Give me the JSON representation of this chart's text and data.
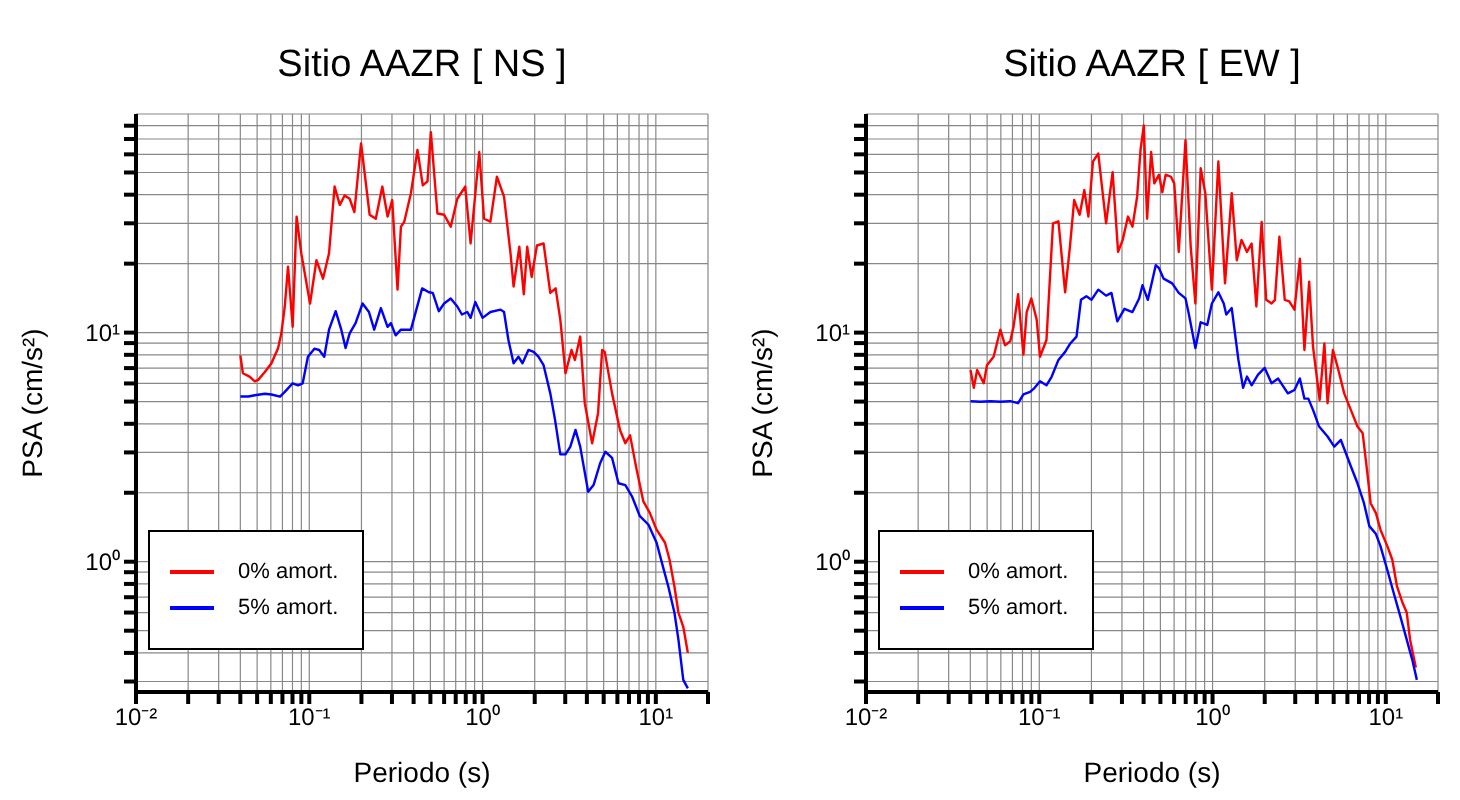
{
  "chart_data": [
    {
      "type": "line",
      "title": "Sitio AAZR [ NS ]",
      "xlabel": "Periodo (s)",
      "ylabel": "PSA (cm/s²)",
      "log": "xy",
      "grid": true,
      "legend": "bottom left",
      "marker": "none",
      "line_style": "solid",
      "xlim": [
        0.01,
        20
      ],
      "ylim": [
        0.27,
        90
      ],
      "xticks": [
        {
          "value": 0.01,
          "label": "10⁻²"
        },
        {
          "value": 0.02,
          "label": null
        },
        {
          "value": 0.03,
          "label": null
        },
        {
          "value": 0.04,
          "label": null
        },
        {
          "value": 0.05,
          "label": null
        },
        {
          "value": 0.06,
          "label": null
        },
        {
          "value": 0.07,
          "label": null
        },
        {
          "value": 0.08,
          "label": null
        },
        {
          "value": 0.09,
          "label": null
        },
        {
          "value": 0.1,
          "label": "10⁻¹"
        },
        {
          "value": 0.2,
          "label": null
        },
        {
          "value": 0.3,
          "label": null
        },
        {
          "value": 0.4,
          "label": null
        },
        {
          "value": 0.5,
          "label": null
        },
        {
          "value": 0.6,
          "label": null
        },
        {
          "value": 0.7,
          "label": null
        },
        {
          "value": 0.8,
          "label": null
        },
        {
          "value": 0.9,
          "label": null
        },
        {
          "value": 1,
          "label": "10⁰"
        },
        {
          "value": 2,
          "label": null
        },
        {
          "value": 3,
          "label": null
        },
        {
          "value": 4,
          "label": null
        },
        {
          "value": 5,
          "label": null
        },
        {
          "value": 6,
          "label": null
        },
        {
          "value": 7,
          "label": null
        },
        {
          "value": 8,
          "label": null
        },
        {
          "value": 9,
          "label": null
        },
        {
          "value": 10,
          "label": "10¹"
        },
        {
          "value": 20,
          "label": null
        }
      ],
      "yticks": [
        {
          "value": 0.3,
          "label": null
        },
        {
          "value": 0.4,
          "label": null
        },
        {
          "value": 0.5,
          "label": null
        },
        {
          "value": 0.6,
          "label": null
        },
        {
          "value": 0.7,
          "label": null
        },
        {
          "value": 0.8,
          "label": null
        },
        {
          "value": 0.9,
          "label": null
        },
        {
          "value": 1,
          "label": "10⁰"
        },
        {
          "value": 2,
          "label": null
        },
        {
          "value": 3,
          "label": null
        },
        {
          "value": 4,
          "label": null
        },
        {
          "value": 5,
          "label": null
        },
        {
          "value": 6,
          "label": null
        },
        {
          "value": 7,
          "label": null
        },
        {
          "value": 8,
          "label": null
        },
        {
          "value": 9,
          "label": null
        },
        {
          "value": 10,
          "label": "10¹"
        },
        {
          "value": 20,
          "label": null
        },
        {
          "value": 30,
          "label": null
        },
        {
          "value": 40,
          "label": null
        },
        {
          "value": 50,
          "label": null
        },
        {
          "value": 60,
          "label": null
        },
        {
          "value": 70,
          "label": null
        },
        {
          "value": 80,
          "label": null
        }
      ],
      "series": [
        {
          "name": "0% amort.",
          "color": "#ff0000",
          "x": [
            0.04,
            0.0414,
            0.0452,
            0.0485,
            0.0507,
            0.0554,
            0.0605,
            0.0661,
            0.069,
            0.0722,
            0.0754,
            0.0802,
            0.0845,
            0.0899,
            0.101,
            0.11,
            0.12,
            0.13,
            0.14,
            0.15,
            0.16,
            0.171,
            0.182,
            0.199,
            0.223,
            0.242,
            0.264,
            0.283,
            0.301,
            0.323,
            0.338,
            0.353,
            0.386,
            0.421,
            0.452,
            0.481,
            0.503,
            0.549,
            0.6,
            0.655,
            0.715,
            0.794,
            0.853,
            0.957,
            1.02,
            1.11,
            1.21,
            1.33,
            1.45,
            1.51,
            1.63,
            1.73,
            1.81,
            1.92,
            2.06,
            2.25,
            2.46,
            2.64,
            2.81,
            3.01,
            3.26,
            3.41,
            3.66,
            3.89,
            4.29,
            4.64,
            4.9,
            5.07,
            5.59,
            6.21,
            6.67,
            7.1,
            7.75,
            8.46,
            9.24,
            10.1,
            11.3,
            12,
            12.8,
            13.5,
            14.4,
            15.3
          ],
          "values": [
            7.96,
            6.65,
            6.43,
            6.13,
            6.22,
            6.73,
            7.35,
            8.57,
            9.93,
            13,
            19.4,
            10.6,
            32.1,
            22.2,
            13.4,
            20.7,
            17.2,
            22.2,
            43.4,
            36.1,
            39.7,
            38.4,
            33.6,
            67,
            32.7,
            31.4,
            43.4,
            32.1,
            37.9,
            15.4,
            29,
            30.4,
            40.6,
            62.7,
            43.9,
            45.7,
            75,
            33.1,
            32.7,
            29,
            38.4,
            43.4,
            24.5,
            61.4,
            31.4,
            30.5,
            47.9,
            39.2,
            22.2,
            15.9,
            23.7,
            14.7,
            23.7,
            17.5,
            24,
            24.5,
            14.9,
            15.6,
            11.4,
            6.65,
            8.4,
            7.6,
            9.61,
            4.92,
            3.29,
            4.45,
            8.4,
            8.24,
            5.43,
            3.76,
            3.29,
            3.56,
            2.52,
            1.84,
            1.63,
            1.38,
            1.21,
            1.02,
            0.78,
            0.6,
            0.52,
            0.4
          ]
        },
        {
          "name": "5% amort.",
          "color": "#0000ff",
          "x": [
            0.04,
            0.0445,
            0.0485,
            0.0554,
            0.0605,
            0.0678,
            0.0722,
            0.0802,
            0.0861,
            0.0916,
            0.0982,
            0.107,
            0.114,
            0.122,
            0.13,
            0.142,
            0.153,
            0.162,
            0.171,
            0.185,
            0.203,
            0.221,
            0.237,
            0.259,
            0.283,
            0.296,
            0.315,
            0.338,
            0.386,
            0.448,
            0.49,
            0.516,
            0.559,
            0.6,
            0.655,
            0.715,
            0.76,
            0.817,
            0.853,
            0.908,
            1,
            1.11,
            1.27,
            1.33,
            1.41,
            1.51,
            1.61,
            1.7,
            1.84,
            1.97,
            2.1,
            2.25,
            2.46,
            2.62,
            2.81,
            3.01,
            3.21,
            3.44,
            3.66,
            4.07,
            4.37,
            4.77,
            5.11,
            5.59,
            6.09,
            6.67,
            7.28,
            8.09,
            9.07,
            10.1,
            11,
            11.8,
            12.8,
            13.5,
            14.4,
            15.3
          ],
          "values": [
            5.26,
            5.26,
            5.33,
            5.41,
            5.37,
            5.26,
            5.51,
            6.01,
            5.89,
            6.01,
            7.85,
            8.51,
            8.4,
            7.85,
            10.3,
            12.4,
            10.3,
            8.57,
            9.93,
            11,
            13.4,
            12.3,
            10.3,
            12.8,
            10.6,
            11,
            9.73,
            10.3,
            10.3,
            15.6,
            15,
            14.9,
            12.4,
            13.4,
            14.1,
            13,
            12,
            12.3,
            11.6,
            13.6,
            11.6,
            12.3,
            12.6,
            12.3,
            9.29,
            7.35,
            7.85,
            7.35,
            8.4,
            8.24,
            7.85,
            7.21,
            5.43,
            4.16,
            2.94,
            2.94,
            3.18,
            3.76,
            3.18,
            2.02,
            2.16,
            2.69,
            3.02,
            2.84,
            2.2,
            2.16,
            1.93,
            1.58,
            1.45,
            1.21,
            0.95,
            0.78,
            0.6,
            0.457,
            0.305,
            0.28
          ]
        }
      ]
    },
    {
      "type": "line",
      "title": "Sitio AAZR [ EW ]",
      "xlabel": "Periodo (s)",
      "ylabel": "PSA (cm/s²)",
      "log": "xy",
      "grid": true,
      "legend": "bottom left",
      "marker": "none",
      "line_style": "solid",
      "xlim": [
        0.01,
        20
      ],
      "ylim": [
        0.27,
        90
      ],
      "xticks": [
        {
          "value": 0.01,
          "label": "10⁻²"
        },
        {
          "value": 0.02,
          "label": null
        },
        {
          "value": 0.03,
          "label": null
        },
        {
          "value": 0.04,
          "label": null
        },
        {
          "value": 0.05,
          "label": null
        },
        {
          "value": 0.06,
          "label": null
        },
        {
          "value": 0.07,
          "label": null
        },
        {
          "value": 0.08,
          "label": null
        },
        {
          "value": 0.09,
          "label": null
        },
        {
          "value": 0.1,
          "label": "10⁻¹"
        },
        {
          "value": 0.2,
          "label": null
        },
        {
          "value": 0.3,
          "label": null
        },
        {
          "value": 0.4,
          "label": null
        },
        {
          "value": 0.5,
          "label": null
        },
        {
          "value": 0.6,
          "label": null
        },
        {
          "value": 0.7,
          "label": null
        },
        {
          "value": 0.8,
          "label": null
        },
        {
          "value": 0.9,
          "label": null
        },
        {
          "value": 1,
          "label": "10⁰"
        },
        {
          "value": 2,
          "label": null
        },
        {
          "value": 3,
          "label": null
        },
        {
          "value": 4,
          "label": null
        },
        {
          "value": 5,
          "label": null
        },
        {
          "value": 6,
          "label": null
        },
        {
          "value": 7,
          "label": null
        },
        {
          "value": 8,
          "label": null
        },
        {
          "value": 9,
          "label": null
        },
        {
          "value": 10,
          "label": "10¹"
        },
        {
          "value": 20,
          "label": null
        }
      ],
      "yticks": [
        {
          "value": 0.3,
          "label": null
        },
        {
          "value": 0.4,
          "label": null
        },
        {
          "value": 0.5,
          "label": null
        },
        {
          "value": 0.6,
          "label": null
        },
        {
          "value": 0.7,
          "label": null
        },
        {
          "value": 0.8,
          "label": null
        },
        {
          "value": 0.9,
          "label": null
        },
        {
          "value": 1,
          "label": "10⁰"
        },
        {
          "value": 2,
          "label": null
        },
        {
          "value": 3,
          "label": null
        },
        {
          "value": 4,
          "label": null
        },
        {
          "value": 5,
          "label": null
        },
        {
          "value": 6,
          "label": null
        },
        {
          "value": 7,
          "label": null
        },
        {
          "value": 8,
          "label": null
        },
        {
          "value": 9,
          "label": null
        },
        {
          "value": 10,
          "label": "10¹"
        },
        {
          "value": 20,
          "label": null
        },
        {
          "value": 30,
          "label": null
        },
        {
          "value": 40,
          "label": null
        },
        {
          "value": 50,
          "label": null
        },
        {
          "value": 60,
          "label": null
        },
        {
          "value": 70,
          "label": null
        },
        {
          "value": 80,
          "label": null
        }
      ],
      "series": [
        {
          "name": "0% amort.",
          "color": "#ff0000",
          "x": [
            0.0401,
            0.0419,
            0.0438,
            0.0478,
            0.0499,
            0.0545,
            0.0596,
            0.0634,
            0.068,
            0.071,
            0.0755,
            0.081,
            0.0846,
            0.09,
            0.0966,
            0.101,
            0.11,
            0.12,
            0.129,
            0.141,
            0.15,
            0.159,
            0.171,
            0.182,
            0.192,
            0.204,
            0.219,
            0.243,
            0.265,
            0.285,
            0.303,
            0.325,
            0.345,
            0.367,
            0.384,
            0.401,
            0.419,
            0.442,
            0.461,
            0.491,
            0.513,
            0.536,
            0.575,
            0.601,
            0.638,
            0.698,
            0.748,
            0.796,
            0.854,
            0.908,
            0.991,
            1.08,
            1.18,
            1.29,
            1.38,
            1.47,
            1.58,
            1.68,
            1.79,
            1.92,
            2.04,
            2.19,
            2.29,
            2.43,
            2.61,
            2.77,
            2.97,
            3.19,
            3.39,
            3.61,
            3.8,
            4.15,
            4.42,
            4.61,
            4.95,
            5.26,
            5.75,
            6.28,
            6.86,
            7.35,
            7.82,
            8.17,
            8.77,
            9.31,
            10.2,
            10.9,
            11.6,
            12.5,
            13.2,
            13.8,
            14.9
          ],
          "values": [
            6.87,
            5.74,
            6.87,
            6.01,
            7.21,
            7.85,
            10.3,
            8.81,
            9.17,
            10.6,
            14.7,
            8.02,
            12.3,
            14.1,
            11.4,
            7.85,
            9.29,
            30,
            30.6,
            15,
            23.4,
            37.9,
            32.7,
            41.9,
            32.1,
            55.8,
            60.5,
            30,
            50.2,
            22.5,
            25.4,
            32.1,
            29,
            39.2,
            62.7,
            80.2,
            31.4,
            61.4,
            44.8,
            48.9,
            41,
            48.9,
            47.9,
            44.8,
            22.5,
            69.2,
            23.7,
            13.4,
            52.2,
            40.6,
            15.4,
            55.8,
            16.4,
            40.6,
            20.7,
            25.4,
            22.5,
            24.5,
            13,
            30.4,
            13.9,
            13.4,
            13.9,
            26.2,
            13.9,
            13.7,
            12.6,
            21,
            8.4,
            16.7,
            8.69,
            5.08,
            8.97,
            4.92,
            8.4,
            7.11,
            5.43,
            4.6,
            3.89,
            3.64,
            2.44,
            1.8,
            1.63,
            1.38,
            1.17,
            1.02,
            0.78,
            0.66,
            0.6,
            0.457,
            0.345
          ]
        },
        {
          "name": "5% amort.",
          "color": "#0000ff",
          "x": [
            0.0401,
            0.0457,
            0.0522,
            0.0596,
            0.068,
            0.0755,
            0.081,
            0.0885,
            0.094,
            0.101,
            0.11,
            0.118,
            0.129,
            0.141,
            0.151,
            0.164,
            0.174,
            0.187,
            0.2,
            0.219,
            0.243,
            0.261,
            0.282,
            0.31,
            0.345,
            0.377,
            0.394,
            0.423,
            0.45,
            0.47,
            0.491,
            0.522,
            0.585,
            0.638,
            0.698,
            0.729,
            0.796,
            0.854,
            0.932,
            0.991,
            1.08,
            1.16,
            1.2,
            1.29,
            1.41,
            1.5,
            1.58,
            1.68,
            1.83,
            2,
            2.19,
            2.39,
            2.72,
            2.97,
            3.19,
            3.39,
            3.57,
            3.8,
            4.12,
            4.61,
            5.04,
            5.5,
            6.28,
            6.86,
            7.48,
            8.03,
            8.77,
            9.31,
            10.2,
            11.1,
            12.1,
            13.2,
            14.2,
            15.1
          ],
          "values": [
            5.02,
            4.99,
            5.02,
            4.99,
            5.02,
            4.92,
            5.37,
            5.51,
            5.74,
            6.13,
            5.89,
            6.43,
            7.6,
            8.24,
            8.97,
            9.61,
            13.9,
            14.4,
            13.9,
            15.4,
            14.5,
            14.9,
            11.2,
            12.7,
            12.3,
            14.1,
            16.1,
            13.9,
            17,
            19.7,
            19.1,
            17.2,
            16.4,
            14.9,
            14.1,
            12.1,
            8.57,
            11.1,
            10.8,
            13.4,
            15,
            13.4,
            12,
            12.8,
            7.6,
            5.74,
            6.43,
            5.89,
            6.56,
            7.01,
            6.01,
            6.3,
            5.43,
            5.62,
            6.3,
            5.15,
            5.15,
            4.6,
            3.89,
            3.52,
            3.18,
            3.4,
            2.61,
            2.2,
            1.8,
            1.43,
            1.32,
            1.17,
            0.92,
            0.73,
            0.58,
            0.457,
            0.374,
            0.305
          ]
        }
      ]
    }
  ]
}
